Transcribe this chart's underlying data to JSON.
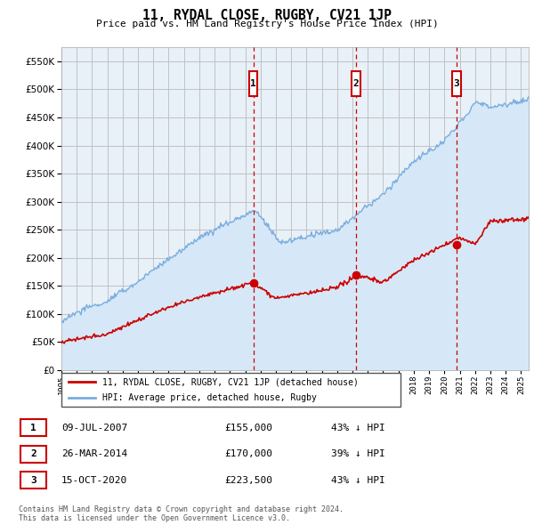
{
  "title": "11, RYDAL CLOSE, RUGBY, CV21 1JP",
  "subtitle": "Price paid vs. HM Land Registry's House Price Index (HPI)",
  "legend_entries": [
    "11, RYDAL CLOSE, RUGBY, CV21 1JP (detached house)",
    "HPI: Average price, detached house, Rugby"
  ],
  "footer": "Contains HM Land Registry data © Crown copyright and database right 2024.\nThis data is licensed under the Open Government Licence v3.0.",
  "hpi_color": "#7aade0",
  "hpi_fill_color": "#d6e8f7",
  "price_color": "#cc0000",
  "dashed_color": "#cc0000",
  "ylim": [
    0,
    575000
  ],
  "xlim_start": 1995,
  "xlim_end": 2025.5,
  "yticks": [
    0,
    50000,
    100000,
    150000,
    200000,
    250000,
    300000,
    350000,
    400000,
    450000,
    500000,
    550000
  ],
  "ytick_labels": [
    "£0",
    "£50K",
    "£100K",
    "£150K",
    "£200K",
    "£250K",
    "£300K",
    "£350K",
    "£400K",
    "£450K",
    "£500K",
    "£550K"
  ],
  "background_color": "#e8f0f8",
  "sale_years_decimal": [
    2007.52,
    2014.23,
    2020.79
  ],
  "sale_prices": [
    155000,
    170000,
    223500
  ],
  "sale_labels": [
    "1",
    "2",
    "3"
  ],
  "sale_dates": [
    "09-JUL-2007",
    "26-MAR-2014",
    "15-OCT-2020"
  ],
  "sale_prices_str": [
    "£155,000",
    "£170,000",
    "£223,500"
  ],
  "sale_hpi_pct": [
    "43% ↓ HPI",
    "39% ↓ HPI",
    "43% ↓ HPI"
  ]
}
